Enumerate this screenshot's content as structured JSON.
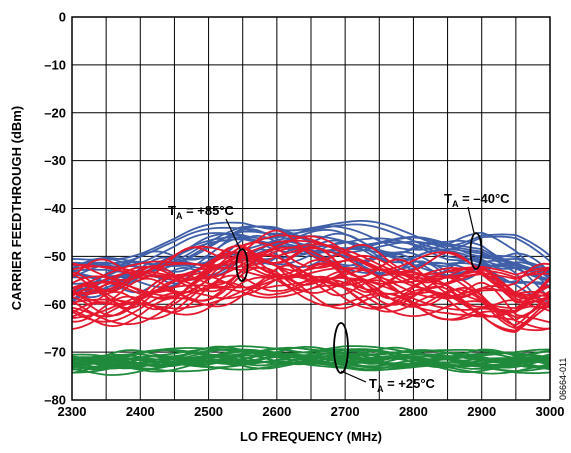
{
  "chart_data": {
    "type": "line",
    "xlabel": "LO FREQUENCY (MHz)",
    "ylabel": "CARRIER FEEDTHROUGH (dBm)",
    "xlim": [
      2300,
      3000
    ],
    "ylim": [
      -80,
      0
    ],
    "xticks": [
      2300,
      2400,
      2500,
      2600,
      2700,
      2800,
      2900,
      3000
    ],
    "yticks": [
      0,
      -10,
      -20,
      -30,
      -40,
      -50,
      -60,
      -70,
      -80
    ],
    "grid": true,
    "x": [
      2300,
      2350,
      2400,
      2450,
      2500,
      2550,
      2600,
      2650,
      2700,
      2750,
      2800,
      2850,
      2900,
      2950,
      3000
    ],
    "series": [
      {
        "group": "blue",
        "color": "#3f5fa8",
        "count": 20,
        "values": [
          -55,
          -53,
          -52,
          -51,
          -49,
          -47,
          -46.5,
          -47,
          -48,
          -48.5,
          -49,
          -50,
          -49,
          -51,
          -55
        ]
      },
      {
        "group": "red",
        "color": "#e5182e",
        "count": 30,
        "values": [
          -58,
          -57.5,
          -57,
          -56,
          -54,
          -52,
          -51.5,
          -52.5,
          -54,
          -55,
          -55.5,
          -56,
          -57,
          -60,
          -58
        ]
      },
      {
        "group": "green",
        "color": "#1f8a3b",
        "count": 24,
        "values": [
          -72.5,
          -72.5,
          -72,
          -71.8,
          -71.5,
          -71.2,
          -71.3,
          -71.5,
          -71.2,
          -71.5,
          -71.8,
          -72,
          -72,
          -72.2,
          -72
        ]
      }
    ],
    "annotations": [
      {
        "label": "T",
        "sub": "A",
        "value": " = +85°C"
      },
      {
        "label": "T",
        "sub": "A",
        "value": " = –40°C"
      },
      {
        "label": "T",
        "sub": "A",
        "value": " = +25°C"
      }
    ],
    "figure_code": "06664-011"
  }
}
